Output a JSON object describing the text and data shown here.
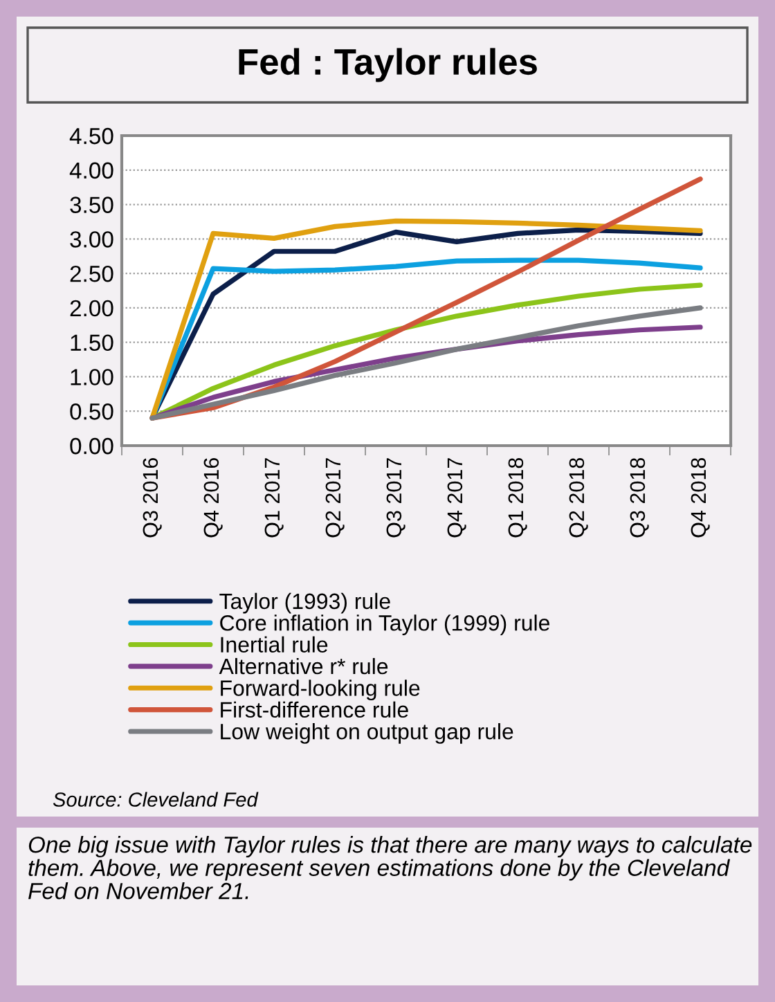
{
  "chart_data": {
    "type": "line",
    "title": "Fed : Taylor rules",
    "categories": [
      "Q3 2016",
      "Q4 2016",
      "Q1 2017",
      "Q2 2017",
      "Q3 2017",
      "Q4 2017",
      "Q1 2018",
      "Q2 2018",
      "Q3 2018",
      "Q4 2018"
    ],
    "series": [
      {
        "name": "Taylor (1993) rule",
        "color": "#0c1f4a",
        "values": [
          0.4,
          2.2,
          2.82,
          2.82,
          3.1,
          2.96,
          3.08,
          3.13,
          3.11,
          3.08
        ]
      },
      {
        "name": "Core inflation in Taylor (1999) rule",
        "color": "#0ca0e0",
        "values": [
          0.4,
          2.57,
          2.53,
          2.55,
          2.6,
          2.68,
          2.69,
          2.69,
          2.65,
          2.58
        ]
      },
      {
        "name": "Inertial rule",
        "color": "#8cc41a",
        "values": [
          0.4,
          0.83,
          1.17,
          1.45,
          1.68,
          1.88,
          2.04,
          2.17,
          2.27,
          2.33
        ]
      },
      {
        "name": "Alternative r* rule",
        "color": "#7e3f8c",
        "values": [
          0.4,
          0.7,
          0.93,
          1.1,
          1.27,
          1.4,
          1.52,
          1.61,
          1.68,
          1.72
        ]
      },
      {
        "name": "Forward-looking rule",
        "color": "#e0a010",
        "values": [
          0.4,
          3.08,
          3.01,
          3.18,
          3.26,
          3.25,
          3.23,
          3.2,
          3.16,
          3.12
        ]
      },
      {
        "name": "First-difference rule",
        "color": "#d0553a",
        "values": [
          0.4,
          0.55,
          0.85,
          1.22,
          1.65,
          2.08,
          2.52,
          2.98,
          3.43,
          3.87
        ]
      },
      {
        "name": "Low weight on output gap rule",
        "color": "#7a7d82",
        "values": [
          0.4,
          0.6,
          0.8,
          1.02,
          1.2,
          1.4,
          1.57,
          1.74,
          1.88,
          2.0
        ]
      }
    ],
    "ylim": [
      0,
      4.5
    ],
    "yticks": [
      {
        "value": 0,
        "label": "0.00"
      },
      {
        "value": 0.5,
        "label": "0.50"
      },
      {
        "value": 1,
        "label": "1.00"
      },
      {
        "value": 1.5,
        "label": "1.50"
      },
      {
        "value": 2,
        "label": "2.00"
      },
      {
        "value": 2.5,
        "label": "2.50"
      },
      {
        "value": 3,
        "label": "3.00"
      },
      {
        "value": 3.5,
        "label": "3.50"
      },
      {
        "value": 4,
        "label": "4.00"
      },
      {
        "value": 4.5,
        "label": "4.50"
      }
    ],
    "grid": "y",
    "legend": "bottom",
    "marker": "none",
    "line_style": "solid",
    "annotations": [
      "Source: Cleveland Fed",
      "One big issue with Taylor rules is that there are many ways to calculate them. Above, we represent seven estimations done by the Cleveland Fed on November 21."
    ]
  }
}
